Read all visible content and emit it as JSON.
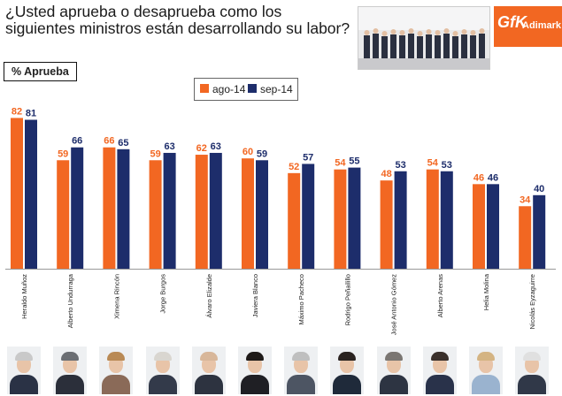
{
  "header": {
    "title": "¿Usted aprueba o desaprueba como los siguientes ministros están desarrollando su labor?",
    "measure": "% Aprueba",
    "logo": {
      "mark": "GfK",
      "text": "Adimark"
    }
  },
  "colors": {
    "ago": "#f26722",
    "sep": "#1d2d6b"
  },
  "chart_data": {
    "type": "bar",
    "title": "¿Usted aprueba o desaprueba como los siguientes ministros están desarrollando su labor?",
    "ylabel": "% Aprueba",
    "ylim": [
      0,
      100
    ],
    "grid": false,
    "legend": "top-left",
    "categories": [
      "Heraldo Muñoz",
      "Alberto Undurraga",
      "Ximena Rincón",
      "Jorge Burgos",
      "Álvaro Elizalde",
      "Javiera Blanco",
      "Máximo Pacheco",
      "Rodrigo Peñailillo",
      "José Antonio Gómez",
      "Alberto Arenas",
      "Helia Molina",
      "Nicolás Eyzaguirre"
    ],
    "series": [
      {
        "name": "ago-14",
        "values": [
          82,
          59,
          66,
          59,
          62,
          60,
          52,
          54,
          48,
          54,
          46,
          34
        ]
      },
      {
        "name": "sep-14",
        "values": [
          81,
          66,
          65,
          63,
          63,
          59,
          57,
          55,
          53,
          53,
          46,
          40
        ]
      }
    ]
  },
  "faces": [
    {
      "hair": "#c9c9c9",
      "suit": "#2a3245"
    },
    {
      "hair": "#6b6e73",
      "suit": "#2b2f3a"
    },
    {
      "hair": "#b98a55",
      "suit": "#8a6a58"
    },
    {
      "hair": "#d9d6d0",
      "suit": "#333a4a"
    },
    {
      "hair": "#d8b79a",
      "suit": "#2d3340"
    },
    {
      "hair": "#1e1a18",
      "suit": "#1f1f24"
    },
    {
      "hair": "#bfbfbf",
      "suit": "#4d5563"
    },
    {
      "hair": "#2a2320",
      "suit": "#1f2a3a"
    },
    {
      "hair": "#7a7672",
      "suit": "#2d3442"
    },
    {
      "hair": "#3a302b",
      "suit": "#29324a"
    },
    {
      "hair": "#d4b483",
      "suit": "#9ab3cf"
    },
    {
      "hair": "#e0e0e0",
      "suit": "#303848"
    }
  ]
}
